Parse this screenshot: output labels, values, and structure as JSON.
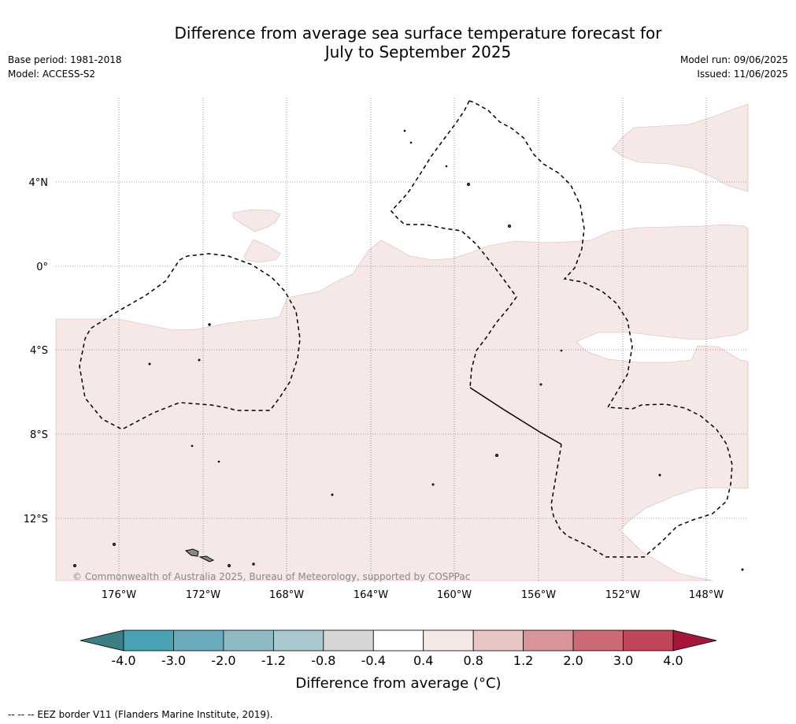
{
  "title_line1": "Difference from average sea surface temperature forecast for",
  "title_line2": "July to September 2025",
  "base_period": "Base period: 1981-2018",
  "model": "Model: ACCESS-S2",
  "model_run": "Model run: 09/06/2025",
  "issued": "Issued: 11/06/2025",
  "lat_labels": [
    "4°N",
    "0°",
    "4°S",
    "8°S",
    "12°S"
  ],
  "lon_labels": [
    "176°W",
    "172°W",
    "168°W",
    "164°W",
    "160°W",
    "156°W",
    "152°W",
    "148°W"
  ],
  "copyright": "© Commonwealth of Australia 2025, Bureau of Meteorology, supported by COSPPac",
  "colorbar": {
    "ticks": [
      "-4.0",
      "-3.0",
      "-2.0",
      "-1.2",
      "-0.8",
      "-0.4",
      "0.4",
      "0.8",
      "1.2",
      "2.0",
      "3.0",
      "4.0"
    ],
    "colors": [
      "#3d7d86",
      "#4aa3b4",
      "#6aabbb",
      "#8fbac4",
      "#aac9cf",
      "#d5d7d7",
      "#ffffff",
      "#f5e8e7",
      "#e8c6c3",
      "#d89499",
      "#cb6a75",
      "#c04658",
      "#a5163a"
    ],
    "label": "Difference from average (°C)"
  },
  "footnote": "-- -- -- EEZ border V11 (Flanders Marine Institute, 2019).",
  "colors": {
    "anomaly_fill": "#f5e8e7",
    "ocean": "#ffffff",
    "grid": "#555555"
  }
}
